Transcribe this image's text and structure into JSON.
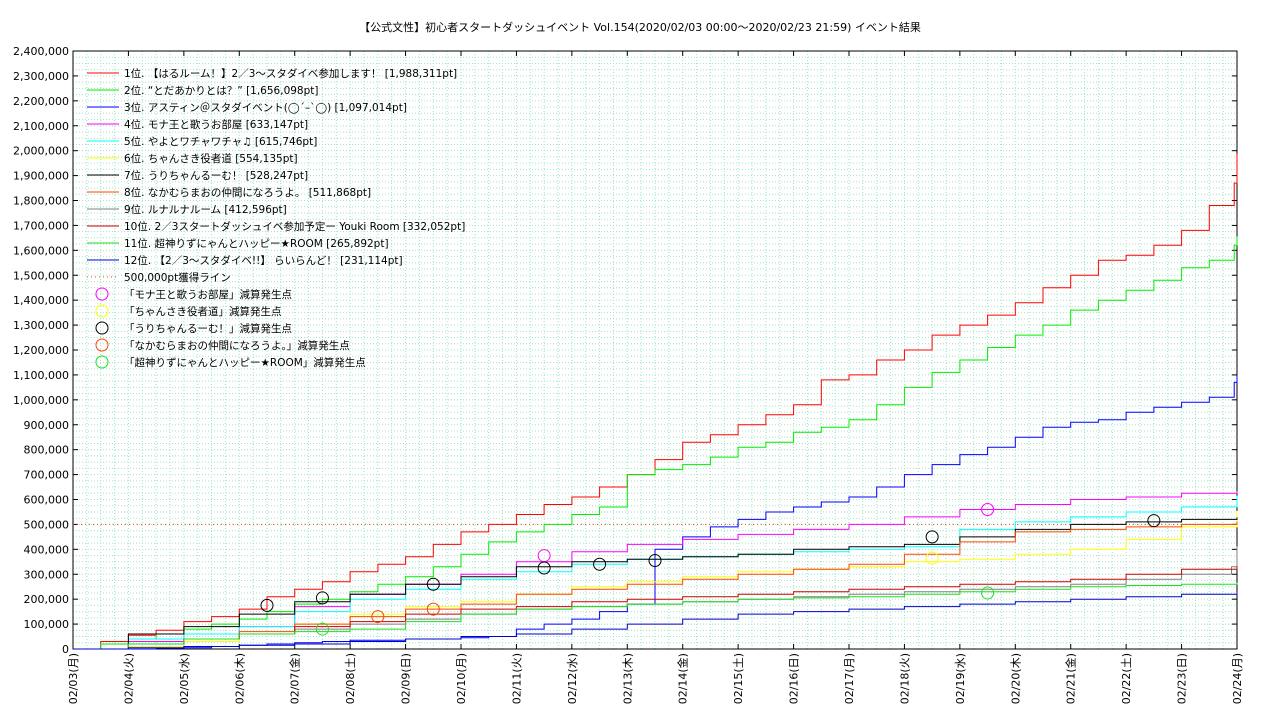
{
  "chart_data": {
    "type": "line",
    "title": "【公式文性】初心者スタートダッシュイベント Vol.154(2020/02/03 00:00〜2020/02/23 21:59)          イベント結果",
    "xlabel": "",
    "ylabel": "",
    "ylim": [
      0,
      2400000
    ],
    "yticks": [
      0,
      100000,
      200000,
      300000,
      400000,
      500000,
      600000,
      700000,
      800000,
      900000,
      1000000,
      1100000,
      1200000,
      1300000,
      1400000,
      1500000,
      1600000,
      1700000,
      1800000,
      1900000,
      2000000,
      2100000,
      2200000,
      2300000,
      2400000
    ],
    "ytick_labels": [
      "0",
      "100,000",
      "200,000",
      "300,000",
      "400,000",
      "500,000",
      "600,000",
      "700,000",
      "800,000",
      "900,000",
      "1,000,000",
      "1,100,000",
      "1,200,000",
      "1,300,000",
      "1,400,000",
      "1,500,000",
      "1,600,000",
      "1,700,000",
      "1,800,000",
      "1,900,000",
      "2,000,000",
      "2,100,000",
      "2,200,000",
      "2,300,000",
      "2,400,000"
    ],
    "xlim": [
      0,
      21
    ],
    "x_unit": "day",
    "categories": [
      "02/03(月)",
      "02/04(火)",
      "02/05(水)",
      "02/06(木)",
      "02/07(金)",
      "02/08(土)",
      "02/09(日)",
      "02/10(月)",
      "02/11(火)",
      "02/12(水)",
      "02/13(木)",
      "02/14(金)",
      "02/15(土)",
      "02/16(日)",
      "02/17(月)",
      "02/18(火)",
      "02/19(水)",
      "02/20(木)",
      "02/21(金)",
      "02/22(土)",
      "02/23(日)",
      "02/24(月)"
    ],
    "grid": true,
    "legend_position": "top-left",
    "series": [
      {
        "name": "1位. 【はるルーム！】2／3〜スタダイベ参加します！ [1,988,311pt]",
        "color": "#ff0000",
        "x": [
          0,
          0.5,
          1,
          1.5,
          2,
          2.5,
          3,
          3.5,
          4,
          4.5,
          5,
          5.5,
          6,
          6.5,
          7,
          7.5,
          8,
          8.5,
          9,
          9.5,
          10,
          10.5,
          11,
          11.5,
          12,
          12.5,
          13,
          13.5,
          14,
          14.5,
          15,
          15.5,
          16,
          16.5,
          17,
          17.5,
          18,
          18.5,
          19,
          19.5,
          20,
          20.5,
          20.95,
          21
        ],
        "y": [
          0,
          30000,
          55000,
          75000,
          110000,
          130000,
          160000,
          210000,
          240000,
          270000,
          310000,
          340000,
          370000,
          420000,
          470000,
          500000,
          540000,
          580000,
          610000,
          650000,
          700000,
          760000,
          830000,
          860000,
          900000,
          940000,
          980000,
          1080000,
          1100000,
          1160000,
          1200000,
          1260000,
          1300000,
          1340000,
          1390000,
          1450000,
          1500000,
          1560000,
          1580000,
          1620000,
          1680000,
          1780000,
          1870000,
          1988311
        ]
      },
      {
        "name": "2位. “とだあかりとは？” [1,656,098pt]",
        "color": "#00ee00",
        "x": [
          0,
          0.5,
          1,
          1.5,
          2,
          2.5,
          3,
          3.5,
          4,
          4.5,
          5,
          5.5,
          6,
          6.5,
          7,
          7.5,
          8,
          8.5,
          9,
          9.5,
          10,
          10.5,
          11,
          11.5,
          12,
          12.5,
          13,
          13.5,
          14,
          14.5,
          15,
          15.5,
          16,
          16.5,
          17,
          17.5,
          18,
          18.5,
          19,
          19.5,
          20,
          20.5,
          20.95,
          21
        ],
        "y": [
          0,
          20000,
          40000,
          60000,
          80000,
          100000,
          120000,
          150000,
          180000,
          200000,
          230000,
          260000,
          290000,
          330000,
          380000,
          430000,
          470000,
          500000,
          540000,
          570000,
          700000,
          720000,
          740000,
          770000,
          810000,
          830000,
          870000,
          890000,
          920000,
          980000,
          1050000,
          1110000,
          1160000,
          1210000,
          1260000,
          1300000,
          1360000,
          1400000,
          1440000,
          1480000,
          1530000,
          1560000,
          1620000,
          1656098
        ]
      },
      {
        "name": "3位. アスティン＠スタダイベント(◯´–`◯) [1,097,014pt]",
        "color": "#0000ff",
        "x": [
          0,
          1,
          1.5,
          2,
          2.5,
          3,
          3.5,
          4,
          4.5,
          5,
          5.5,
          6,
          6.5,
          7,
          7.5,
          8,
          8.5,
          9,
          9.5,
          10,
          10.5,
          11,
          11.5,
          12,
          12.5,
          13,
          13.5,
          14,
          14.5,
          15,
          15.5,
          16,
          16.5,
          17,
          17.5,
          18,
          18.5,
          19,
          19.5,
          20,
          20.5,
          20.95,
          21
        ],
        "y": [
          0,
          0,
          3000,
          5000,
          10000,
          15000,
          20000,
          25000,
          30000,
          35000,
          35000,
          40000,
          40000,
          45000,
          50000,
          80000,
          100000,
          120000,
          150000,
          180000,
          400000,
          450000,
          490000,
          520000,
          550000,
          570000,
          590000,
          610000,
          650000,
          700000,
          740000,
          780000,
          810000,
          850000,
          890000,
          910000,
          920000,
          950000,
          970000,
          990000,
          1010000,
          1070000,
          1097014
        ]
      },
      {
        "name": "4位. モナ王と歌うお部屋 [633,147pt]",
        "color": "#ff00ff",
        "x": [
          0,
          1,
          2,
          3,
          4,
          5,
          6,
          7,
          8,
          9,
          10,
          11,
          12,
          13,
          14,
          15,
          16,
          17,
          18,
          19,
          20,
          21
        ],
        "y": [
          0,
          30000,
          60000,
          90000,
          170000,
          220000,
          260000,
          300000,
          350000,
          390000,
          420000,
          440000,
          460000,
          480000,
          500000,
          530000,
          560000,
          580000,
          600000,
          610000,
          625000,
          633147
        ]
      },
      {
        "name": "5位. やよとワチャワチャ♫ [615,746pt]",
        "color": "#00ffff",
        "x": [
          0,
          1,
          2,
          3,
          4,
          5,
          6,
          7,
          8,
          9,
          10,
          11,
          12,
          13,
          14,
          15,
          16,
          17,
          18,
          19,
          20,
          21
        ],
        "y": [
          0,
          40000,
          60000,
          90000,
          150000,
          200000,
          240000,
          280000,
          310000,
          340000,
          360000,
          370000,
          380000,
          390000,
          400000,
          410000,
          480000,
          510000,
          530000,
          550000,
          570000,
          615746
        ]
      },
      {
        "name": "6位. ちゃんさき役者道 [554,135pt]",
        "color": "#ffff00",
        "x": [
          0,
          1,
          2,
          3,
          4,
          5,
          6,
          7,
          8,
          9,
          10,
          11,
          12,
          13,
          14,
          15,
          16,
          17,
          18,
          19,
          20,
          21
        ],
        "y": [
          0,
          10000,
          30000,
          60000,
          100000,
          140000,
          170000,
          190000,
          220000,
          250000,
          270000,
          290000,
          310000,
          320000,
          330000,
          350000,
          360000,
          380000,
          400000,
          440000,
          490000,
          554135
        ]
      },
      {
        "name": "7位. うりちゃんるーむ！ [528,247pt]",
        "color": "#000000",
        "x": [
          0,
          1,
          2,
          3,
          4,
          5,
          6,
          7,
          8,
          9,
          10,
          11,
          12,
          13,
          14,
          15,
          16,
          17,
          18,
          19,
          20,
          21
        ],
        "y": [
          0,
          60000,
          90000,
          140000,
          190000,
          220000,
          260000,
          290000,
          330000,
          350000,
          360000,
          370000,
          380000,
          400000,
          410000,
          420000,
          450000,
          480000,
          500000,
          510000,
          520000,
          528247
        ]
      },
      {
        "name": "8位. なかむらまおの仲間になろうよ。 [511,868pt]",
        "color": "#ff4500",
        "x": [
          0,
          1,
          2,
          3,
          4,
          5,
          6,
          7,
          8,
          9,
          10,
          11,
          12,
          13,
          14,
          15,
          16,
          17,
          18,
          19,
          20,
          21
        ],
        "y": [
          0,
          20000,
          40000,
          70000,
          100000,
          130000,
          160000,
          180000,
          220000,
          240000,
          260000,
          280000,
          300000,
          320000,
          340000,
          380000,
          430000,
          470000,
          480000,
          490000,
          500000,
          511868
        ]
      },
      {
        "name": "9位. ルナルナルーム [412,596pt]",
        "color": "#808080",
        "x": [
          0,
          1,
          2,
          3,
          4,
          5,
          6,
          7,
          8,
          9,
          10,
          11,
          12,
          13,
          14,
          15,
          16,
          17,
          18,
          19,
          20,
          20.9,
          21
        ],
        "y": [
          0,
          20000,
          40000,
          60000,
          80000,
          100000,
          120000,
          140000,
          160000,
          170000,
          180000,
          190000,
          200000,
          210000,
          220000,
          230000,
          240000,
          250000,
          260000,
          280000,
          300000,
          330000,
          412596
        ]
      },
      {
        "name": "10位. 2／3スタートダッシュイベ参加予定ー Youki Room [332,052pt]",
        "color": "#cc0000",
        "x": [
          0,
          1,
          2,
          3,
          4,
          5,
          6,
          7,
          8,
          9,
          10,
          11,
          12,
          13,
          14,
          15,
          16,
          17,
          18,
          19,
          20,
          21
        ],
        "y": [
          0,
          20000,
          40000,
          60000,
          90000,
          110000,
          140000,
          160000,
          170000,
          190000,
          200000,
          210000,
          220000,
          230000,
          240000,
          250000,
          260000,
          270000,
          280000,
          300000,
          320000,
          332052
        ]
      },
      {
        "name": "11位. 超神りずにゃんとハッピー★ROOM [265,892pt]",
        "color": "#22dd22",
        "x": [
          0,
          1,
          2,
          3,
          4,
          5,
          6,
          7,
          8,
          9,
          10,
          11,
          12,
          13,
          14,
          15,
          16,
          17,
          18,
          19,
          20,
          21
        ],
        "y": [
          0,
          20000,
          40000,
          60000,
          70000,
          80000,
          110000,
          140000,
          160000,
          170000,
          180000,
          190000,
          200000,
          205000,
          210000,
          220000,
          230000,
          240000,
          250000,
          255000,
          260000,
          265892
        ]
      },
      {
        "name": "12位. 【2／3〜スタダイベ!!】 らいらんど！ [231,114pt]",
        "color": "#0000cc",
        "x": [
          0,
          1,
          2,
          3,
          4,
          5,
          6,
          7,
          8,
          9,
          10,
          11,
          12,
          13,
          14,
          15,
          16,
          17,
          18,
          19,
          20,
          21
        ],
        "y": [
          0,
          5000,
          10000,
          15000,
          20000,
          30000,
          40000,
          50000,
          60000,
          80000,
          100000,
          120000,
          140000,
          150000,
          160000,
          170000,
          180000,
          190000,
          200000,
          210000,
          220000,
          231114
        ]
      }
    ],
    "reference_line": {
      "name": "500,000pt獲得ライン",
      "value": 500000,
      "color": "#ff4500",
      "style": "dotted"
    },
    "markers": [
      {
        "name": "「モナ王と歌うお部屋」減算発生点",
        "color": "#ff00ff",
        "points": [
          {
            "x": 8.5,
            "y": 375000
          },
          {
            "x": 16.5,
            "y": 560000
          }
        ]
      },
      {
        "name": "「ちゃんさき役者道」減算発生点",
        "color": "#ffff00",
        "points": [
          {
            "x": 15.5,
            "y": 365000
          }
        ]
      },
      {
        "name": "「うりちゃんるーむ！」減算発生点",
        "color": "#000000",
        "points": [
          {
            "x": 3.5,
            "y": 175000
          },
          {
            "x": 4.5,
            "y": 205000
          },
          {
            "x": 6.5,
            "y": 260000
          },
          {
            "x": 8.5,
            "y": 325000
          },
          {
            "x": 9.5,
            "y": 340000
          },
          {
            "x": 10.5,
            "y": 355000
          },
          {
            "x": 15.5,
            "y": 450000
          },
          {
            "x": 19.5,
            "y": 515000
          }
        ]
      },
      {
        "name": "「なかむらまおの仲間になろうよ。」減算発生点",
        "color": "#ff4500",
        "points": [
          {
            "x": 5.5,
            "y": 130000
          },
          {
            "x": 6.5,
            "y": 160000
          }
        ]
      },
      {
        "name": "「超神りずにゃんとハッピー★ROOM」減算発生点",
        "color": "#22dd22",
        "points": [
          {
            "x": 4.5,
            "y": 80000
          },
          {
            "x": 16.5,
            "y": 225000
          }
        ]
      }
    ]
  }
}
